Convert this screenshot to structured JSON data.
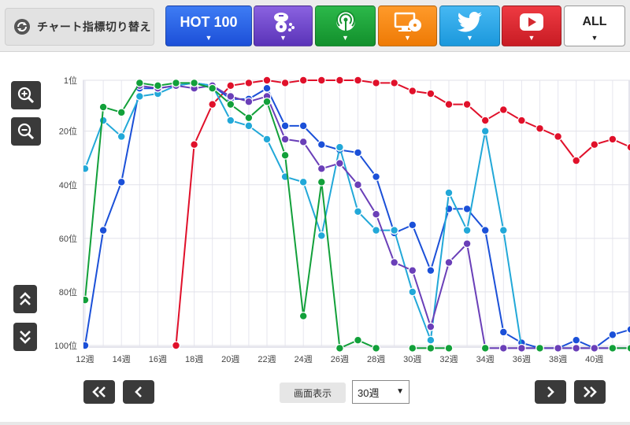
{
  "header": {
    "switch_label": "チャート指標切り替え",
    "tabs": [
      {
        "id": "hot100",
        "label": "HOT 100",
        "icon": "none"
      },
      {
        "id": "package",
        "label": "",
        "icon": "package-sales-icon"
      },
      {
        "id": "radio",
        "label": "",
        "icon": "radio-icon"
      },
      {
        "id": "pc",
        "label": "",
        "icon": "pc-cd-icon"
      },
      {
        "id": "twitter",
        "label": "",
        "icon": "twitter-icon"
      },
      {
        "id": "youtube",
        "label": "",
        "icon": "youtube-icon"
      },
      {
        "id": "all",
        "label": "ALL",
        "icon": "none"
      }
    ],
    "caret": "▼"
  },
  "controls": {
    "display_label": "画面表示",
    "display_value": "30週",
    "select_caret": "▼"
  },
  "chart_data": {
    "type": "line",
    "x": [
      12,
      13,
      14,
      15,
      16,
      17,
      18,
      19,
      20,
      21,
      22,
      23,
      24,
      25,
      26,
      27,
      28,
      29,
      30,
      31,
      32,
      33,
      34,
      35,
      36,
      37,
      38,
      39,
      40,
      41,
      42
    ],
    "xticks": [
      "12週",
      "14週",
      "16週",
      "18週",
      "20週",
      "22週",
      "24週",
      "26週",
      "28週",
      "30週",
      "32週",
      "34週",
      "36週",
      "38週",
      "40週"
    ],
    "yticks": [
      "1位",
      "20位",
      "40位",
      "60位",
      "80位",
      "100位"
    ],
    "ylim": [
      1,
      100
    ],
    "y_reversed": true,
    "grid": true,
    "series": [
      {
        "color": "#e0102a",
        "values": [
          null,
          null,
          null,
          null,
          null,
          100,
          25,
          10,
          3,
          2,
          1,
          2,
          1,
          1,
          1,
          1,
          2,
          2,
          5,
          6,
          10,
          10,
          16,
          12,
          16,
          19,
          22,
          31,
          25,
          23,
          26
        ]
      },
      {
        "color": "#1b50d8",
        "values": [
          100,
          57,
          39,
          4,
          4,
          3,
          2,
          3,
          8,
          8,
          4,
          18,
          18,
          25,
          27,
          28,
          37,
          58,
          55,
          72,
          49,
          49,
          57,
          95,
          99,
          101,
          101,
          98,
          101,
          96,
          94
        ]
      },
      {
        "color": "#22a8d8",
        "values": [
          34,
          16,
          22,
          7,
          6,
          3,
          2,
          3,
          16,
          18,
          23,
          37,
          39,
          59,
          26,
          50,
          57,
          57,
          80,
          98,
          43,
          57,
          20,
          57,
          101,
          101,
          101,
          101,
          101,
          101,
          null
        ]
      },
      {
        "color": "#6a3fb8",
        "values": [
          null,
          null,
          null,
          3,
          4,
          3,
          4,
          3,
          7,
          9,
          7,
          23,
          24,
          34,
          32,
          40,
          51,
          69,
          72,
          93,
          69,
          62,
          101,
          101,
          101,
          101,
          101,
          101,
          101,
          101,
          101
        ]
      },
      {
        "color": "#12a03a",
        "values": [
          83,
          11,
          13,
          2,
          3,
          2,
          2,
          4,
          10,
          15,
          9,
          29,
          89,
          39,
          101,
          98,
          101,
          null,
          101,
          101,
          101,
          null,
          101,
          null,
          null,
          101,
          null,
          null,
          null,
          101,
          101
        ]
      }
    ]
  }
}
